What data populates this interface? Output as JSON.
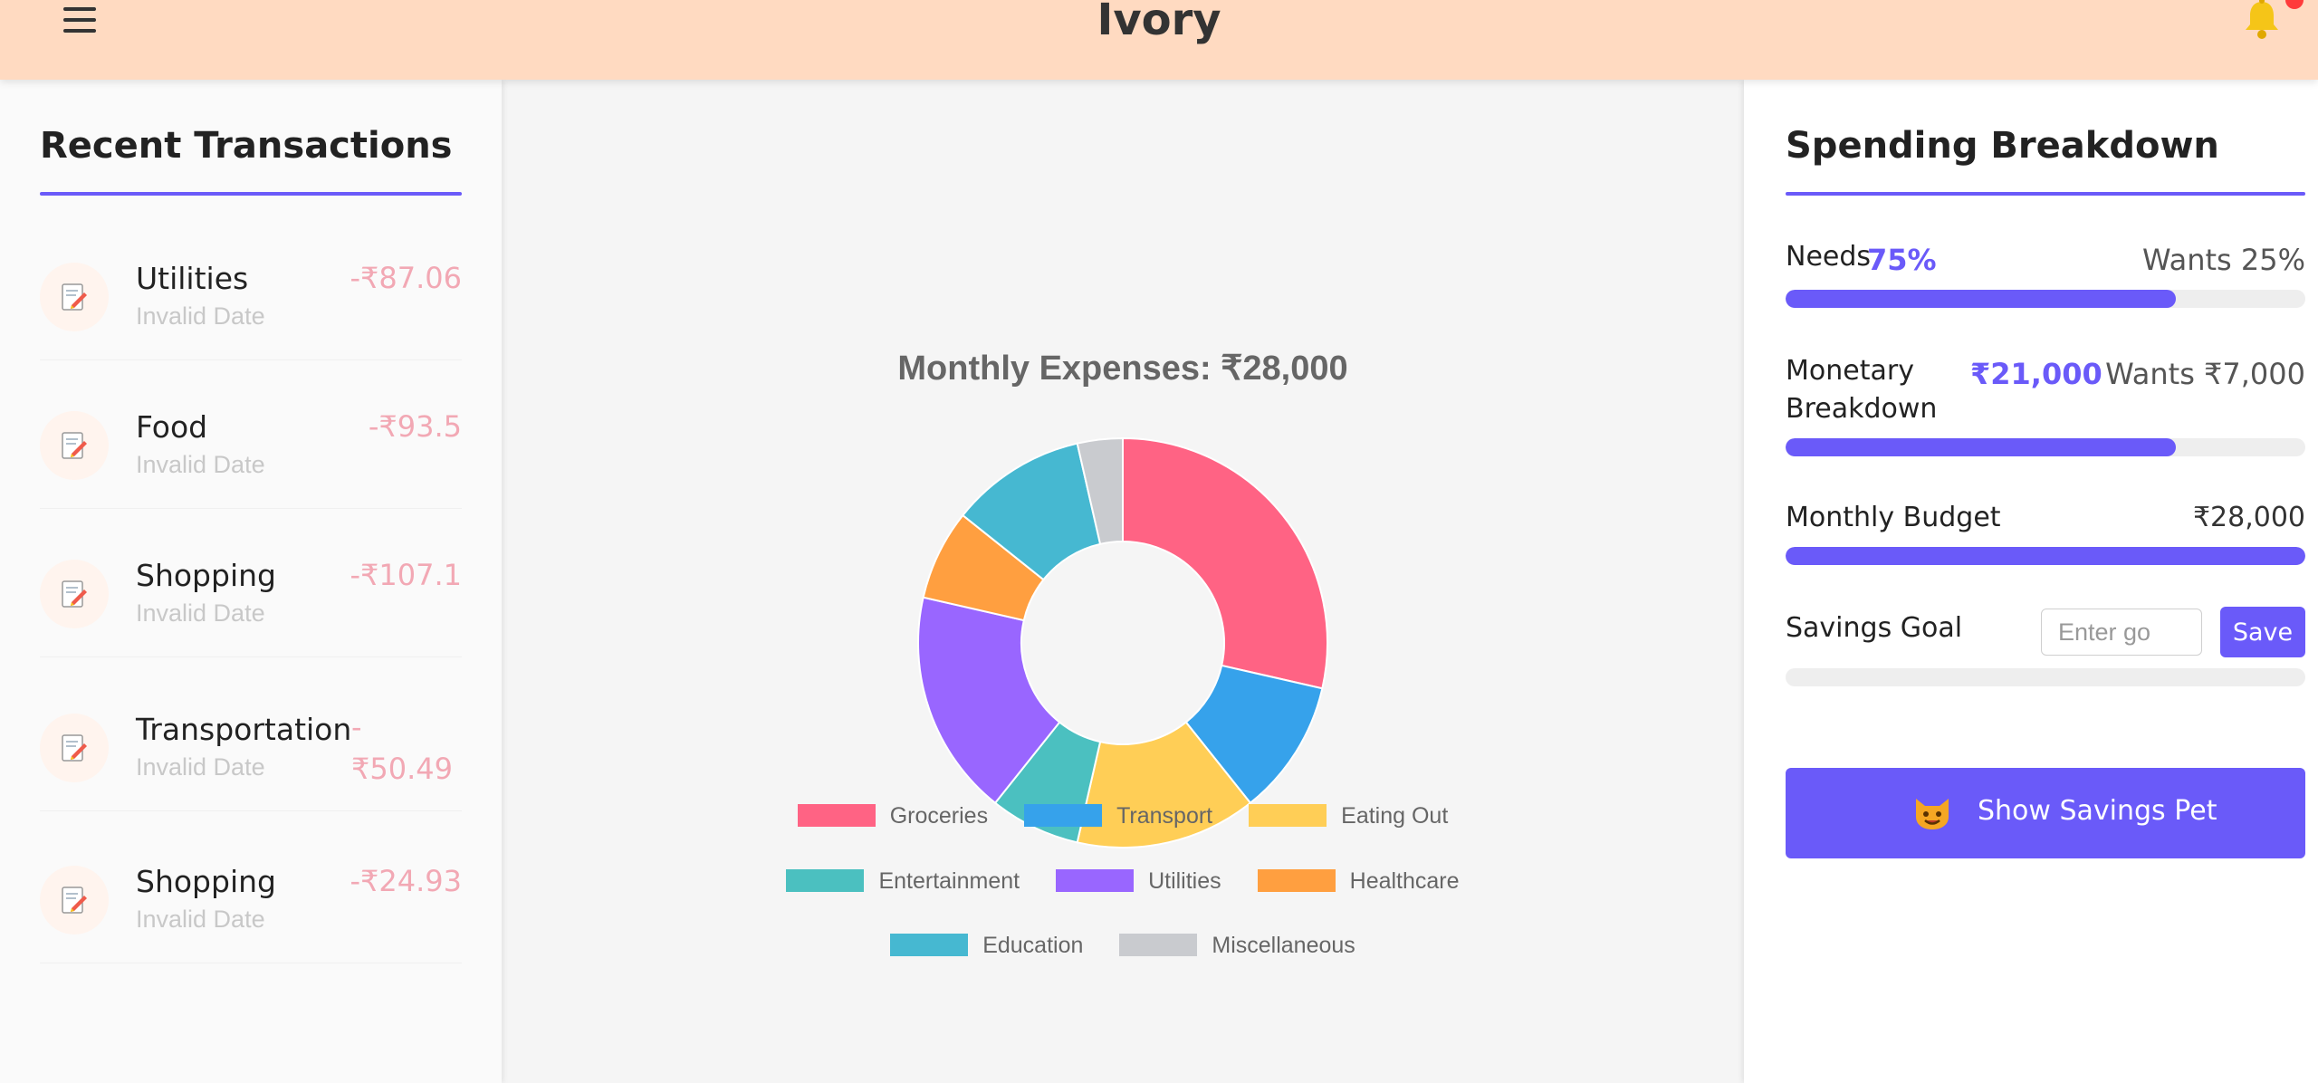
{
  "header": {
    "title": "Ivory",
    "menu_icon": "hamburger-menu-icon",
    "bell_icon": "bell-icon",
    "bell_color": "#f5c518"
  },
  "transactions": {
    "title": "Recent Transactions",
    "icon": "memo-pencil-icon",
    "items": [
      {
        "category": "Utilities",
        "date": "Invalid Date",
        "amount": "-₹87.06"
      },
      {
        "category": "Food",
        "date": "Invalid Date",
        "amount": "-₹93.5"
      },
      {
        "category": "Shopping",
        "date": "Invalid Date",
        "amount": "-₹107.1"
      },
      {
        "category": "Transportation",
        "date": "Invalid Date",
        "amount": "-",
        "amount_wrapped": "₹50.49"
      },
      {
        "category": "Shopping",
        "date": "Invalid Date",
        "amount": "-₹24.93"
      }
    ]
  },
  "chart_data": {
    "type": "pie",
    "title": "Monthly Expenses: ₹28,000",
    "donut": true,
    "legend_position": "bottom",
    "categories": [
      "Groceries",
      "Transport",
      "Eating Out",
      "Entertainment",
      "Utilities",
      "Healthcare",
      "Education",
      "Miscellaneous"
    ],
    "values": [
      28,
      10.5,
      14,
      7,
      17.5,
      7,
      10.5,
      3.5
    ],
    "colors": [
      "#ff6384",
      "#36a2eb",
      "#ffce56",
      "#4bc0c0",
      "#9966ff",
      "#ff9f40",
      "#46b8d1",
      "#c9cbcf"
    ]
  },
  "spending": {
    "title": "Spending Breakdown",
    "accent": "#6a5af9",
    "needs": {
      "label": "Needs",
      "value": "75%",
      "wants": "Wants 25%",
      "fill": 0.75
    },
    "monetary": {
      "label_line1": "Monetary",
      "label_line2": "Breakdown",
      "value": "₹21,000",
      "wants": "Wants ₹7,000",
      "fill": 0.75
    },
    "budget": {
      "label": "Monthly Budget",
      "value": "₹28,000",
      "fill": 1.0
    },
    "savings": {
      "label": "Savings Goal",
      "placeholder": "Enter go",
      "save_label": "Save",
      "fill": 0.0
    },
    "pet_button": {
      "label": "Show Savings Pet",
      "icon": "cat-face-icon"
    }
  }
}
